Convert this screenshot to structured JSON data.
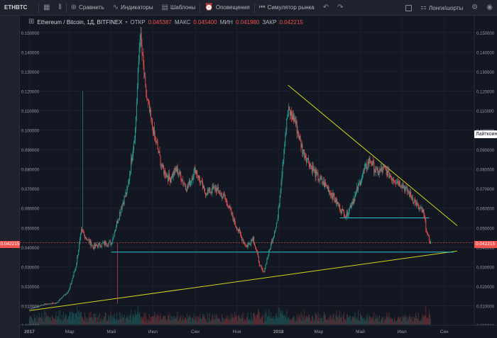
{
  "toolbar": {
    "symbol": "ETHBTC",
    "compare_label": "Сравнить",
    "indicators_label": "Индикаторы",
    "templates_label": "Шаблоны",
    "alerts_label": "Оповещения",
    "replay_label": "Симулятор рынка",
    "long_short_label": "Лонги/шорты"
  },
  "legend": {
    "title": "Ethereum / Bitcoin, 1Д, BITFINEX",
    "open_label": "ОТКР",
    "open_value": "0.045387",
    "high_label": "МАКС",
    "high_value": "0.045400",
    "low_label": "МИН",
    "low_value": "0.041980",
    "close_label": "ЗАКР",
    "close_value": "0.042215"
  },
  "tooltip_badge": "Лайткоин / Биткоин",
  "price_badge": "0.042215",
  "price_axis": [
    "0.150000",
    "0.140000",
    "0.130000",
    "0.120000",
    "0.110000",
    "0.100000",
    "0.090000",
    "0.080000",
    "0.070000",
    "0.060000",
    "0.050000",
    "0.040000",
    "0.030000",
    "0.020000",
    "0.010000",
    "0.000000"
  ],
  "time_axis": [
    "2017",
    "Мар",
    "Май",
    "Июл",
    "Сен",
    "Ноя",
    "2018",
    "Мар",
    "Май",
    "Июл",
    "Сен"
  ],
  "colors": {
    "up": "#26a69a",
    "down": "#ef5350",
    "background": "#131722",
    "trendline": "#d4d41a",
    "support": "#26c6da"
  },
  "chart_data": {
    "type": "candlestick",
    "y_scale": "linear",
    "ylim": [
      0,
      0.155
    ],
    "close_series": [
      [
        "2017-01-01",
        0.0083
      ],
      [
        "2017-01-20",
        0.0105
      ],
      [
        "2017-02-10",
        0.0115
      ],
      [
        "2017-02-28",
        0.018
      ],
      [
        "2017-03-10",
        0.03
      ],
      [
        "2017-03-18",
        0.048
      ],
      [
        "2017-03-25",
        0.045
      ],
      [
        "2017-04-05",
        0.04
      ],
      [
        "2017-04-20",
        0.042
      ],
      [
        "2017-05-01",
        0.042
      ],
      [
        "2017-05-15",
        0.06
      ],
      [
        "2017-05-25",
        0.07
      ],
      [
        "2017-06-05",
        0.1
      ],
      [
        "2017-06-12",
        0.15
      ],
      [
        "2017-06-20",
        0.12
      ],
      [
        "2017-07-01",
        0.1
      ],
      [
        "2017-07-15",
        0.08
      ],
      [
        "2017-07-25",
        0.075
      ],
      [
        "2017-08-05",
        0.08
      ],
      [
        "2017-08-20",
        0.07
      ],
      [
        "2017-09-01",
        0.08
      ],
      [
        "2017-09-15",
        0.068
      ],
      [
        "2017-10-01",
        0.07
      ],
      [
        "2017-10-15",
        0.065
      ],
      [
        "2017-11-01",
        0.05
      ],
      [
        "2017-11-15",
        0.04
      ],
      [
        "2017-11-25",
        0.045
      ],
      [
        "2017-12-05",
        0.03
      ],
      [
        "2017-12-10",
        0.027
      ],
      [
        "2017-12-20",
        0.04
      ],
      [
        "2017-12-31",
        0.055
      ],
      [
        "2018-01-10",
        0.095
      ],
      [
        "2018-01-15",
        0.11
      ],
      [
        "2018-01-25",
        0.105
      ],
      [
        "2018-02-05",
        0.09
      ],
      [
        "2018-02-20",
        0.08
      ],
      [
        "2018-03-01",
        0.075
      ],
      [
        "2018-03-15",
        0.07
      ],
      [
        "2018-04-01",
        0.06
      ],
      [
        "2018-04-10",
        0.056
      ],
      [
        "2018-04-25",
        0.068
      ],
      [
        "2018-05-05",
        0.078
      ],
      [
        "2018-05-15",
        0.085
      ],
      [
        "2018-05-25",
        0.078
      ],
      [
        "2018-06-05",
        0.08
      ],
      [
        "2018-06-15",
        0.076
      ],
      [
        "2018-07-01",
        0.072
      ],
      [
        "2018-07-15",
        0.066
      ],
      [
        "2018-07-25",
        0.06
      ],
      [
        "2018-08-01",
        0.058
      ],
      [
        "2018-08-08",
        0.045
      ],
      [
        "2018-08-12",
        0.0422
      ]
    ],
    "lines": [
      {
        "name": "descending-trendline",
        "from": [
          "2018-01-15",
          0.123
        ],
        "to": [
          "2018-09-20",
          0.051
        ]
      },
      {
        "name": "ascending-trendline",
        "from": [
          "2017-01-01",
          0.0075
        ],
        "to": [
          "2018-09-20",
          0.038
        ]
      },
      {
        "name": "support-1",
        "from": [
          "2017-05-01",
          0.0375
        ],
        "to": [
          "2018-09-15",
          0.0375
        ]
      },
      {
        "name": "support-2",
        "from": [
          "2018-04-01",
          0.055
        ],
        "to": [
          "2018-08-10",
          0.055
        ]
      }
    ]
  }
}
